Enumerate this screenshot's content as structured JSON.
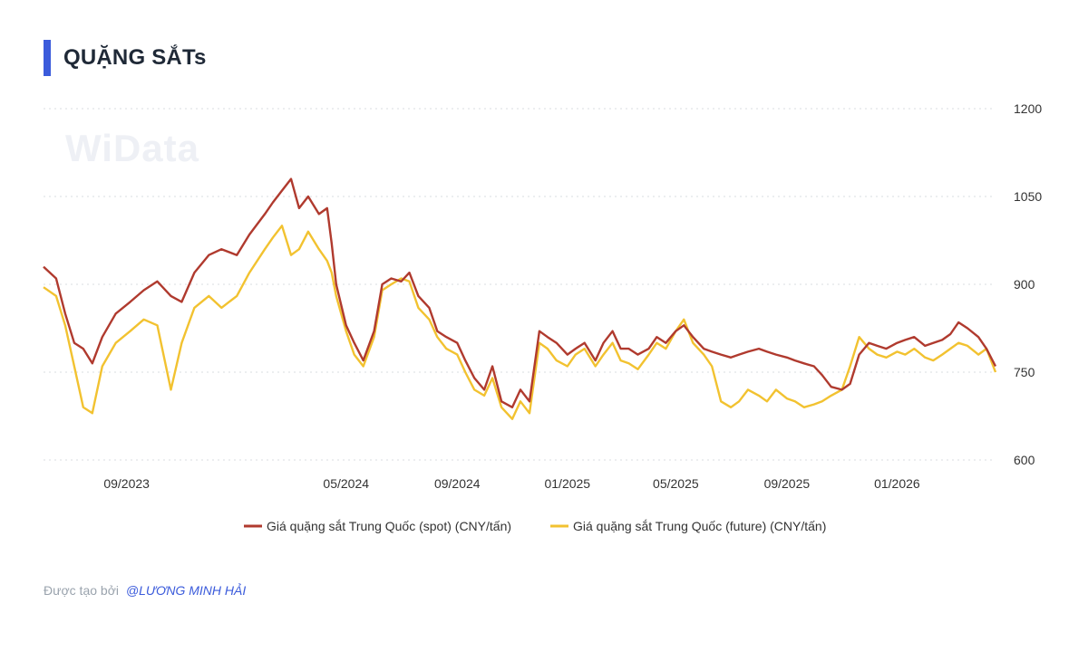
{
  "header": {
    "title": "QUẶNG SẮTs"
  },
  "watermark": "WiData",
  "footer": {
    "created_by": "Được tạo bởi",
    "author": "@LƯƠNG MINH HẢI"
  },
  "colors": {
    "accent": "#3b5bdb",
    "spot": "#b03a2e",
    "future": "#f2c230",
    "grid": "#d8dce2"
  },
  "chart_data": {
    "type": "line",
    "title": "QUẶNG SẮTs",
    "xlabel": "",
    "ylabel": "",
    "x_range": [
      "2023-06-01",
      "2026-04-20"
    ],
    "ylim": [
      600,
      1200
    ],
    "y_ticks": [
      "600",
      "750",
      "900",
      "1050",
      "1200"
    ],
    "x_ticks": [
      {
        "date": "2023-09-01",
        "label": "09/2023"
      },
      {
        "date": "2024-05-01",
        "label": "05/2024"
      },
      {
        "date": "2024-09-01",
        "label": "09/2024"
      },
      {
        "date": "2025-01-01",
        "label": "01/2025"
      },
      {
        "date": "2025-05-01",
        "label": "05/2025"
      },
      {
        "date": "2025-09-01",
        "label": "09/2025"
      },
      {
        "date": "2026-01-01",
        "label": "01/2026"
      }
    ],
    "grid": true,
    "legend": "bottom",
    "series": [
      {
        "name": "Giá quặng sắt Trung Quốc (spot) (CNY/tấn)",
        "color": "#b03a2e",
        "points": [
          [
            "2023-06-01",
            930
          ],
          [
            "2023-06-15",
            910
          ],
          [
            "2023-06-25",
            850
          ],
          [
            "2023-07-05",
            800
          ],
          [
            "2023-07-15",
            790
          ],
          [
            "2023-07-25",
            765
          ],
          [
            "2023-08-05",
            810
          ],
          [
            "2023-08-20",
            850
          ],
          [
            "2023-09-05",
            870
          ],
          [
            "2023-09-20",
            890
          ],
          [
            "2023-10-05",
            905
          ],
          [
            "2023-10-20",
            880
          ],
          [
            "2023-11-01",
            870
          ],
          [
            "2023-11-15",
            920
          ],
          [
            "2023-12-01",
            950
          ],
          [
            "2023-12-15",
            960
          ],
          [
            "2024-01-01",
            950
          ],
          [
            "2024-01-15",
            985
          ],
          [
            "2024-02-01",
            1020
          ],
          [
            "2024-02-10",
            1040
          ],
          [
            "2024-02-20",
            1060
          ],
          [
            "2024-03-01",
            1080
          ],
          [
            "2024-03-10",
            1030
          ],
          [
            "2024-03-20",
            1050
          ],
          [
            "2024-04-01",
            1020
          ],
          [
            "2024-04-10",
            1030
          ],
          [
            "2024-04-15",
            970
          ],
          [
            "2024-04-20",
            900
          ],
          [
            "2024-05-01",
            830
          ],
          [
            "2024-05-10",
            800
          ],
          [
            "2024-05-20",
            770
          ],
          [
            "2024-06-01",
            820
          ],
          [
            "2024-06-10",
            900
          ],
          [
            "2024-06-20",
            910
          ],
          [
            "2024-07-01",
            905
          ],
          [
            "2024-07-10",
            920
          ],
          [
            "2024-07-20",
            880
          ],
          [
            "2024-08-01",
            860
          ],
          [
            "2024-08-10",
            820
          ],
          [
            "2024-08-20",
            810
          ],
          [
            "2024-09-01",
            800
          ],
          [
            "2024-09-10",
            770
          ],
          [
            "2024-09-20",
            740
          ],
          [
            "2024-10-01",
            720
          ],
          [
            "2024-10-10",
            760
          ],
          [
            "2024-10-20",
            700
          ],
          [
            "2024-11-01",
            690
          ],
          [
            "2024-11-10",
            720
          ],
          [
            "2024-11-20",
            700
          ],
          [
            "2024-12-01",
            820
          ],
          [
            "2024-12-10",
            810
          ],
          [
            "2024-12-20",
            800
          ],
          [
            "2025-01-01",
            780
          ],
          [
            "2025-01-10",
            790
          ],
          [
            "2025-01-20",
            800
          ],
          [
            "2025-02-01",
            770
          ],
          [
            "2025-02-10",
            800
          ],
          [
            "2025-02-20",
            820
          ],
          [
            "2025-03-01",
            790
          ],
          [
            "2025-03-10",
            790
          ],
          [
            "2025-03-20",
            780
          ],
          [
            "2025-04-01",
            790
          ],
          [
            "2025-04-10",
            810
          ],
          [
            "2025-04-20",
            800
          ],
          [
            "2025-05-01",
            820
          ],
          [
            "2025-05-10",
            830
          ],
          [
            "2025-05-20",
            810
          ],
          [
            "2025-06-01",
            790
          ],
          [
            "2025-06-10",
            785
          ],
          [
            "2025-06-20",
            780
          ],
          [
            "2025-07-01",
            775
          ],
          [
            "2025-07-10",
            780
          ],
          [
            "2025-07-20",
            785
          ],
          [
            "2025-08-01",
            790
          ],
          [
            "2025-08-10",
            785
          ],
          [
            "2025-08-20",
            780
          ],
          [
            "2025-09-01",
            775
          ],
          [
            "2025-09-10",
            770
          ],
          [
            "2025-09-20",
            765
          ],
          [
            "2025-10-01",
            760
          ],
          [
            "2025-10-10",
            745
          ],
          [
            "2025-10-20",
            725
          ],
          [
            "2025-11-01",
            720
          ],
          [
            "2025-11-10",
            730
          ],
          [
            "2025-11-20",
            780
          ],
          [
            "2025-12-01",
            800
          ],
          [
            "2025-12-10",
            795
          ],
          [
            "2025-12-20",
            790
          ],
          [
            "2026-01-01",
            800
          ],
          [
            "2026-01-10",
            805
          ],
          [
            "2026-01-20",
            810
          ],
          [
            "2026-02-01",
            795
          ],
          [
            "2026-02-10",
            800
          ],
          [
            "2026-02-20",
            805
          ],
          [
            "2026-03-01",
            815
          ],
          [
            "2026-03-10",
            835
          ],
          [
            "2026-03-20",
            825
          ],
          [
            "2026-04-01",
            810
          ],
          [
            "2026-04-10",
            790
          ],
          [
            "2026-04-20",
            760
          ]
        ]
      },
      {
        "name": "Giá quặng sắt Trung Quốc (future) (CNY/tấn)",
        "color": "#f2c230",
        "points": [
          [
            "2023-06-01",
            895
          ],
          [
            "2023-06-15",
            880
          ],
          [
            "2023-06-25",
            830
          ],
          [
            "2023-07-05",
            760
          ],
          [
            "2023-07-15",
            690
          ],
          [
            "2023-07-25",
            680
          ],
          [
            "2023-08-05",
            760
          ],
          [
            "2023-08-20",
            800
          ],
          [
            "2023-09-05",
            820
          ],
          [
            "2023-09-20",
            840
          ],
          [
            "2023-10-05",
            830
          ],
          [
            "2023-10-20",
            720
          ],
          [
            "2023-11-01",
            800
          ],
          [
            "2023-11-15",
            860
          ],
          [
            "2023-12-01",
            880
          ],
          [
            "2023-12-15",
            860
          ],
          [
            "2024-01-01",
            880
          ],
          [
            "2024-01-15",
            920
          ],
          [
            "2024-02-01",
            960
          ],
          [
            "2024-02-10",
            980
          ],
          [
            "2024-02-20",
            1000
          ],
          [
            "2024-03-01",
            950
          ],
          [
            "2024-03-10",
            960
          ],
          [
            "2024-03-20",
            990
          ],
          [
            "2024-04-01",
            960
          ],
          [
            "2024-04-10",
            940
          ],
          [
            "2024-04-15",
            920
          ],
          [
            "2024-04-20",
            880
          ],
          [
            "2024-05-01",
            820
          ],
          [
            "2024-05-10",
            780
          ],
          [
            "2024-05-20",
            760
          ],
          [
            "2024-06-01",
            810
          ],
          [
            "2024-06-10",
            890
          ],
          [
            "2024-06-20",
            900
          ],
          [
            "2024-07-01",
            910
          ],
          [
            "2024-07-10",
            905
          ],
          [
            "2024-07-20",
            860
          ],
          [
            "2024-08-01",
            840
          ],
          [
            "2024-08-10",
            810
          ],
          [
            "2024-08-20",
            790
          ],
          [
            "2024-09-01",
            780
          ],
          [
            "2024-09-10",
            750
          ],
          [
            "2024-09-20",
            720
          ],
          [
            "2024-10-01",
            710
          ],
          [
            "2024-10-10",
            740
          ],
          [
            "2024-10-20",
            690
          ],
          [
            "2024-11-01",
            670
          ],
          [
            "2024-11-10",
            700
          ],
          [
            "2024-11-20",
            680
          ],
          [
            "2024-12-01",
            800
          ],
          [
            "2024-12-10",
            790
          ],
          [
            "2024-12-20",
            770
          ],
          [
            "2025-01-01",
            760
          ],
          [
            "2025-01-10",
            780
          ],
          [
            "2025-01-20",
            790
          ],
          [
            "2025-02-01",
            760
          ],
          [
            "2025-02-10",
            780
          ],
          [
            "2025-02-20",
            800
          ],
          [
            "2025-03-01",
            770
          ],
          [
            "2025-03-10",
            765
          ],
          [
            "2025-03-20",
            755
          ],
          [
            "2025-04-01",
            780
          ],
          [
            "2025-04-10",
            800
          ],
          [
            "2025-04-20",
            790
          ],
          [
            "2025-05-01",
            820
          ],
          [
            "2025-05-10",
            840
          ],
          [
            "2025-05-20",
            800
          ],
          [
            "2025-06-01",
            780
          ],
          [
            "2025-06-10",
            760
          ],
          [
            "2025-06-20",
            700
          ],
          [
            "2025-07-01",
            690
          ],
          [
            "2025-07-10",
            700
          ],
          [
            "2025-07-20",
            720
          ],
          [
            "2025-08-01",
            710
          ],
          [
            "2025-08-10",
            700
          ],
          [
            "2025-08-20",
            720
          ],
          [
            "2025-09-01",
            705
          ],
          [
            "2025-09-10",
            700
          ],
          [
            "2025-09-20",
            690
          ],
          [
            "2025-10-01",
            695
          ],
          [
            "2025-10-10",
            700
          ],
          [
            "2025-10-20",
            710
          ],
          [
            "2025-11-01",
            720
          ],
          [
            "2025-11-10",
            760
          ],
          [
            "2025-11-20",
            810
          ],
          [
            "2025-12-01",
            790
          ],
          [
            "2025-12-10",
            780
          ],
          [
            "2025-12-20",
            775
          ],
          [
            "2026-01-01",
            785
          ],
          [
            "2026-01-10",
            780
          ],
          [
            "2026-01-20",
            790
          ],
          [
            "2026-02-01",
            775
          ],
          [
            "2026-02-10",
            770
          ],
          [
            "2026-02-20",
            780
          ],
          [
            "2026-03-01",
            790
          ],
          [
            "2026-03-10",
            800
          ],
          [
            "2026-03-20",
            795
          ],
          [
            "2026-04-01",
            780
          ],
          [
            "2026-04-10",
            790
          ],
          [
            "2026-04-20",
            750
          ]
        ]
      }
    ]
  }
}
